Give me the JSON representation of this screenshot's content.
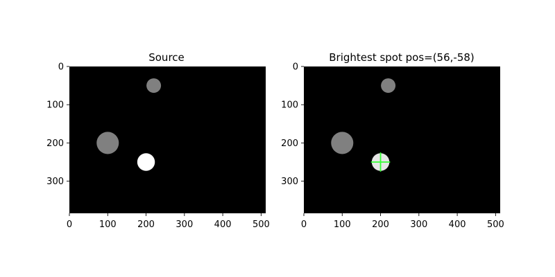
{
  "colors": {
    "background": "#ffffff",
    "image_background": "#000000",
    "crosshair": "#33ff33"
  },
  "chart_data": [
    {
      "type": "image",
      "title": "Source",
      "xlim": [
        0,
        512
      ],
      "ylim": [
        384,
        0
      ],
      "xticks": [
        0,
        100,
        200,
        300,
        400,
        500
      ],
      "yticks": [
        0,
        100,
        200,
        300
      ],
      "spots": [
        {
          "cx": 220,
          "cy": 50,
          "r": 19,
          "gray": "#808080"
        },
        {
          "cx": 100,
          "cy": 200,
          "r": 29,
          "gray": "#808080"
        },
        {
          "cx": 200,
          "cy": 250,
          "r": 23,
          "gray": "#ffffff"
        }
      ]
    },
    {
      "type": "image",
      "title": "Brightest spot pos=(56,-58)",
      "xlim": [
        0,
        512
      ],
      "ylim": [
        384,
        0
      ],
      "xticks": [
        0,
        100,
        200,
        300,
        400,
        500
      ],
      "yticks": [
        0,
        100,
        200,
        300
      ],
      "spots": [
        {
          "cx": 220,
          "cy": 50,
          "r": 19,
          "gray": "#808080"
        },
        {
          "cx": 100,
          "cy": 200,
          "r": 29,
          "gray": "#808080"
        },
        {
          "cx": 200,
          "cy": 250,
          "r": 23,
          "gray": "#e6e6e6"
        }
      ],
      "marker": {
        "x": 200,
        "y": 250,
        "halfwidth": 25
      }
    }
  ]
}
